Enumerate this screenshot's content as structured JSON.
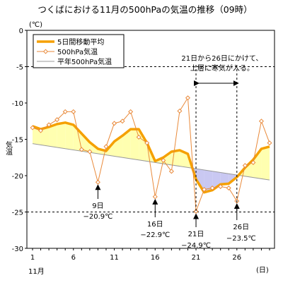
{
  "chart_data": {
    "type": "line",
    "title": "つくばにおける11月の500hPaの気温の推移（09時）",
    "ylabel": "気温",
    "yunit": "(℃)",
    "xunit": "(日)",
    "xmonth": "11月",
    "xlim": [
      1,
      30
    ],
    "ylim": [
      -30,
      0
    ],
    "yticks": [
      0,
      -5,
      -10,
      -15,
      -20,
      -25,
      -30
    ],
    "xticks": [
      1,
      6,
      11,
      16,
      21,
      26
    ],
    "grid_dashed_y": [
      -5,
      -25
    ],
    "legend": [
      "5日間移動平均",
      "500hPa気温",
      "平年500hPa気温"
    ],
    "series": [
      {
        "name": "5日間移動平均",
        "color": "#f5a000",
        "x": [
          1,
          2,
          3,
          4,
          5,
          6,
          7,
          8,
          9,
          10,
          11,
          12,
          13,
          14,
          15,
          16,
          17,
          18,
          19,
          20,
          21,
          22,
          23,
          24,
          25,
          26,
          27,
          28,
          29,
          30
        ],
        "values": [
          -13.2,
          -13.6,
          -13.3,
          -12.9,
          -12.7,
          -13.0,
          -14.2,
          -15.4,
          -16.3,
          -16.6,
          -15.3,
          -14.5,
          -13.6,
          -13.6,
          -15.5,
          -18.0,
          -17.5,
          -16.7,
          -16.5,
          -17.0,
          -20.5,
          -22.3,
          -22.0,
          -21.2,
          -21.1,
          -20.2,
          -18.9,
          -17.8,
          -16.3,
          -16.0
        ]
      },
      {
        "name": "500hPa気温",
        "color": "#e98a3b",
        "x": [
          1,
          2,
          3,
          4,
          5,
          6,
          7,
          8,
          9,
          10,
          11,
          12,
          13,
          14,
          15,
          16,
          17,
          18,
          19,
          20,
          21,
          22,
          23,
          24,
          25,
          26,
          27,
          28,
          29,
          30
        ],
        "values": [
          -13.4,
          -13.8,
          -13.0,
          -12.3,
          -11.2,
          -11.2,
          -16.4,
          -16.7,
          -20.9,
          -16.0,
          -12.8,
          -12.5,
          -11.2,
          -14.7,
          -15.5,
          -22.9,
          -17.9,
          -19.4,
          -11.1,
          -9.3,
          -24.9,
          -21.9,
          -21.7,
          -21.5,
          -21.7,
          -23.5,
          -18.6,
          -18.2,
          -12.5,
          -15.5
        ]
      },
      {
        "name": "平年500hPa気温",
        "color": "#999999",
        "x": [
          1,
          30
        ],
        "values": [
          -15.6,
          -20.6
        ]
      }
    ],
    "annotations": [
      {
        "day": 9,
        "label": "9日",
        "value_label": "−20.9℃"
      },
      {
        "day": 16,
        "label": "16日",
        "value_label": "−22.9℃"
      },
      {
        "day": 21,
        "label": "21日",
        "value_label": "−24.9℃"
      },
      {
        "day": 26,
        "label": "26日",
        "value_label": "−23.5℃"
      }
    ],
    "period_note": {
      "from": 21,
      "to": 26,
      "line1": "21日から26日にかけて、",
      "line2": "上層に寒気が入る。"
    },
    "fills": {
      "warm": "#ffffb0",
      "cold": "#c9c8f2"
    }
  }
}
